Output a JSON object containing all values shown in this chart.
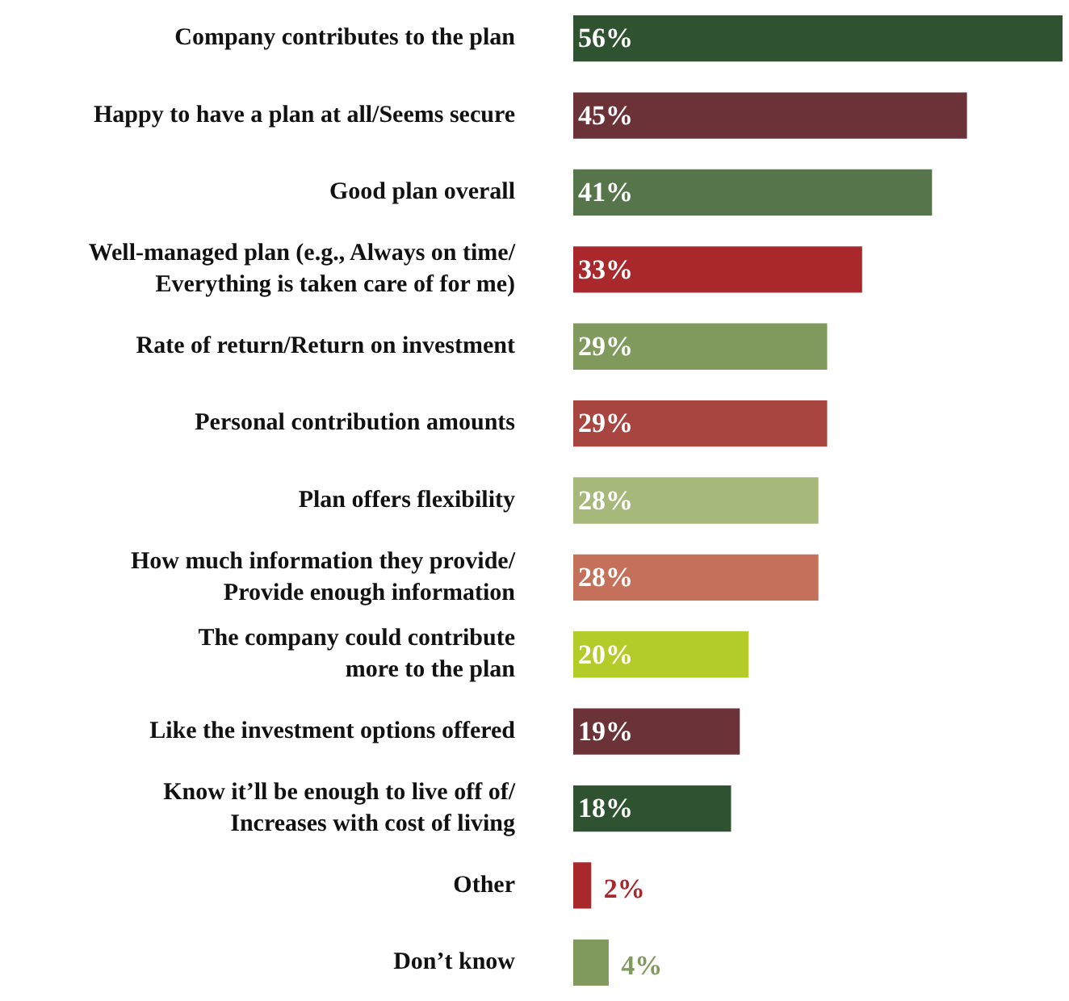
{
  "chart_data": {
    "type": "bar",
    "orientation": "horizontal",
    "value_labels": [
      "56%",
      "45%",
      "41%",
      "33%",
      "29%",
      "29%",
      "28%",
      "28%",
      "20%",
      "19%",
      "18%",
      "2%",
      "4%"
    ],
    "categories": [
      "Company contributes to the plan",
      "Happy to have a plan at all/Seems secure",
      "Good plan overall",
      "Well-managed plan (e.g., Always on time/\nEverything is taken care of for me)",
      "Rate of return/Return on investment",
      "Personal contribution amounts",
      "Plan offers flexibility",
      "How much information they provide/\nProvide enough information",
      "The company could contribute\nmore to the plan",
      "Like the investment options offered",
      "Know it’ll be enough to live off of/\nIncreases with cost of living",
      "Other",
      "Don’t know"
    ],
    "values": [
      56,
      45,
      41,
      33,
      29,
      29,
      28,
      28,
      20,
      19,
      18,
      2,
      4
    ],
    "colors": [
      "#2f5230",
      "#6b3238",
      "#56754a",
      "#a8282c",
      "#7f9a5c",
      "#a84540",
      "#a6b87a",
      "#c4705a",
      "#b4cc2a",
      "#6b3238",
      "#2f5230",
      "#a8282c",
      "#7f9a5c"
    ]
  }
}
